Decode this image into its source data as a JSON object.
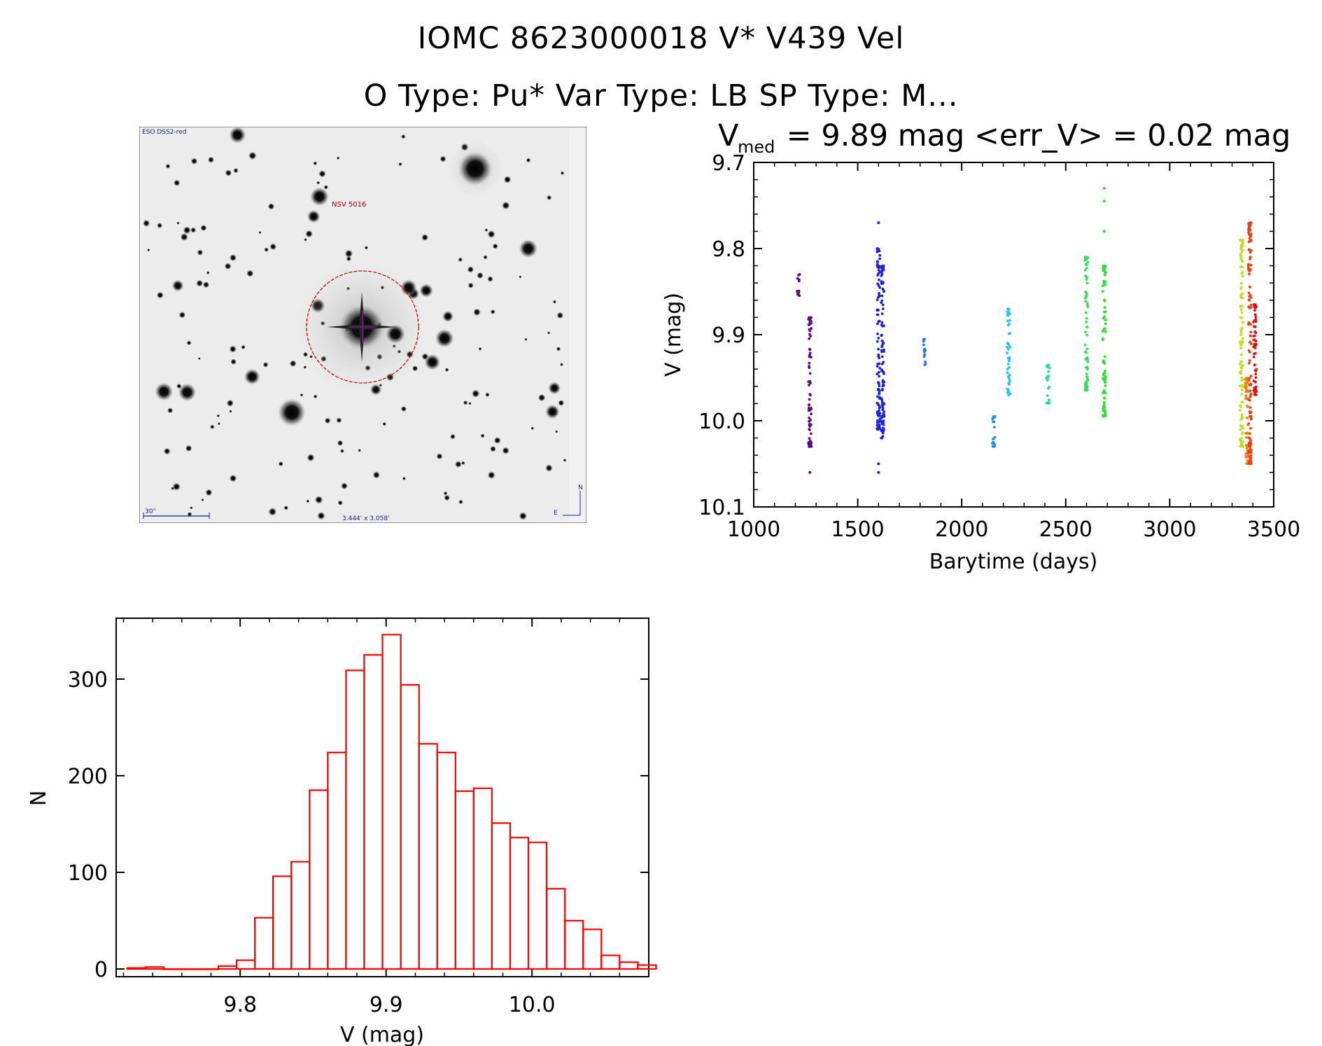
{
  "header": {
    "line1": "IOMC 8623000018    V* V439 Vel",
    "line2": "O Type: Pu*   Var Type: LB   SP Type: M..."
  },
  "finder_chart": {
    "survey_label": "ESO DSS2-red",
    "object_label": "NSV 5016",
    "scale_label": "30\"",
    "size_label": "3.444' x 3.058'",
    "north_label": "N",
    "east_label": "E"
  },
  "chart_data": [
    {
      "type": "scatter",
      "title_prefix": "V",
      "title_sub": "med",
      "title_rest": " = 9.89 mag <err_V> = 0.02 mag",
      "xlabel": "Barytime (days)",
      "ylabel": "V (mag)",
      "xlim": [
        1000,
        3500
      ],
      "ylim": [
        10.1,
        9.7
      ],
      "y_inverted": true,
      "xticks": [
        "1000",
        "1500",
        "2000",
        "2500",
        "3000",
        "3500"
      ],
      "yticks": [
        "9.7",
        "9.8",
        "9.9",
        "10.0",
        "10.1"
      ],
      "clusters": [
        {
          "x": 1215,
          "ymin": 9.83,
          "ymax": 9.855,
          "color": "#5a0a8a"
        },
        {
          "x": 1270,
          "ymin": 9.88,
          "ymax": 10.03,
          "color": "#5a0a8a",
          "outliers": [
            10.06
          ]
        },
        {
          "x": 1600,
          "ymin": 9.8,
          "ymax": 10.01,
          "color": "#2020e0",
          "outliers": [
            9.77,
            10.05,
            10.06
          ]
        },
        {
          "x": 1620,
          "ymin": 9.82,
          "ymax": 10.02,
          "color": "#2020e0"
        },
        {
          "x": 1820,
          "ymin": 9.905,
          "ymax": 9.935,
          "color": "#2a70e8"
        },
        {
          "x": 2155,
          "ymin": 9.995,
          "ymax": 10.03,
          "color": "#1a90e8"
        },
        {
          "x": 2225,
          "ymin": 9.87,
          "ymax": 9.97,
          "color": "#22c8e8"
        },
        {
          "x": 2415,
          "ymin": 9.935,
          "ymax": 9.98,
          "color": "#20e0a0"
        },
        {
          "x": 2600,
          "ymin": 9.81,
          "ymax": 9.965,
          "color": "#30e060"
        },
        {
          "x": 2685,
          "ymin": 9.82,
          "ymax": 9.995,
          "color": "#30e030",
          "outliers": [
            9.73,
            9.745,
            9.78
          ]
        },
        {
          "x": 3345,
          "ymin": 9.79,
          "ymax": 10.03,
          "color": "#c0e020"
        },
        {
          "x": 3370,
          "ymin": 9.95,
          "ymax": 10.05,
          "color": "#f08010"
        },
        {
          "x": 3385,
          "ymin": 9.77,
          "ymax": 10.05,
          "color": "#f04010"
        },
        {
          "x": 3410,
          "ymin": 9.865,
          "ymax": 9.97,
          "color": "#e01010"
        }
      ]
    },
    {
      "type": "bar",
      "subtype": "histogram",
      "xlabel": "V (mag)",
      "ylabel": "N",
      "xlim": [
        9.715,
        10.08
      ],
      "ylim": [
        -8,
        363
      ],
      "xticks": [
        "9.8",
        "9.9",
        "10.0"
      ],
      "yticks": [
        "0",
        "100",
        "200",
        "300"
      ],
      "bin_width": 0.0125,
      "bin_start": 9.7225,
      "counts": [
        1,
        2,
        0,
        0,
        0,
        3,
        9,
        53,
        96,
        111,
        185,
        224,
        309,
        325,
        346,
        294,
        233,
        224,
        184,
        187,
        151,
        136,
        131,
        83,
        50,
        41,
        14,
        7,
        4
      ],
      "color": "#ff0000"
    }
  ]
}
